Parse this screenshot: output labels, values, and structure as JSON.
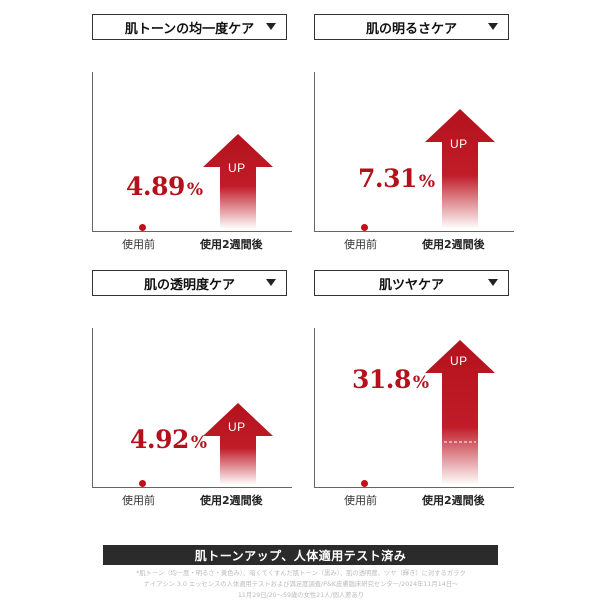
{
  "colors": {
    "accent": "#b3121c",
    "dot": "#c0101a",
    "banner_bg": "#2b2b2b",
    "footnote": "#bbbbbb"
  },
  "panels": [
    {
      "title": "肌トーンの均一度ケア",
      "value": "4.89",
      "unit": "%",
      "before": "使用前",
      "after": "使用2週間後",
      "arrow_text": "UP",
      "icon": "chevron-down-icon"
    },
    {
      "title": "肌の明るさケア",
      "value": "7.31",
      "unit": "%",
      "before": "使用前",
      "after": "使用2週間後",
      "arrow_text": "UP",
      "icon": "chevron-down-icon"
    },
    {
      "title": "肌の透明度ケア",
      "value": "4.92",
      "unit": "%",
      "before": "使用前",
      "after": "使用2週間後",
      "arrow_text": "UP",
      "icon": "chevron-down-icon"
    },
    {
      "title": "肌ツヤケア",
      "value": "31.8",
      "unit": "%",
      "before": "使用前",
      "after": "使用2週間後",
      "arrow_text": "UP",
      "icon": "chevron-down-icon"
    }
  ],
  "banner": "肌トーンアップ、人体適用テスト済み",
  "footnote": {
    "line1": "*肌トーン（均一度・明るさ・黄色み）、暗くてくすんだ肌トーン（黒み）、肌の透明度、ツヤ（輝き）に対するガラク",
    "line2": "ナイアシン 3.0 エッセンスの人体適用テストおよび満足度調査/P&K皮膚臨床研究センター/2024年11月14日～",
    "line3": "11月29日/20～59歳の女性21人/個人差あり"
  }
}
